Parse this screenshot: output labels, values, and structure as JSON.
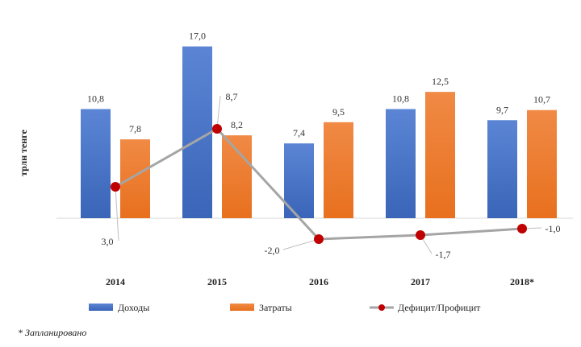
{
  "chart_data": {
    "type": "bar",
    "categories": [
      "2014",
      "2015",
      "2016",
      "2017",
      "2018*"
    ],
    "ylabel": "трлн тенге",
    "series": [
      {
        "name": "Доходы",
        "kind": "bar",
        "color": "#4472C4",
        "values": [
          10.8,
          17.0,
          7.4,
          10.8,
          9.7
        ],
        "labels": [
          "10,8",
          "17,0",
          "7,4",
          "10,8",
          "9,7"
        ]
      },
      {
        "name": "Затраты",
        "kind": "bar",
        "color": "#ED7D31",
        "values": [
          7.8,
          8.2,
          9.5,
          12.5,
          10.7
        ],
        "labels": [
          "7,8",
          "8,2",
          "9,5",
          "12,5",
          "10,7"
        ]
      },
      {
        "name": "Дефицит/Профицит",
        "kind": "line",
        "color": "#A5A5A5",
        "marker_color": "#C00000",
        "values": [
          3.0,
          8.7,
          -2.0,
          -1.7,
          -1.0
        ],
        "labels": [
          "3,0",
          "8,7",
          "-2,0",
          "-1,7",
          "-1,0"
        ]
      }
    ],
    "legend_position": "bottom",
    "grid": false
  },
  "footnote": "* Запланировано"
}
